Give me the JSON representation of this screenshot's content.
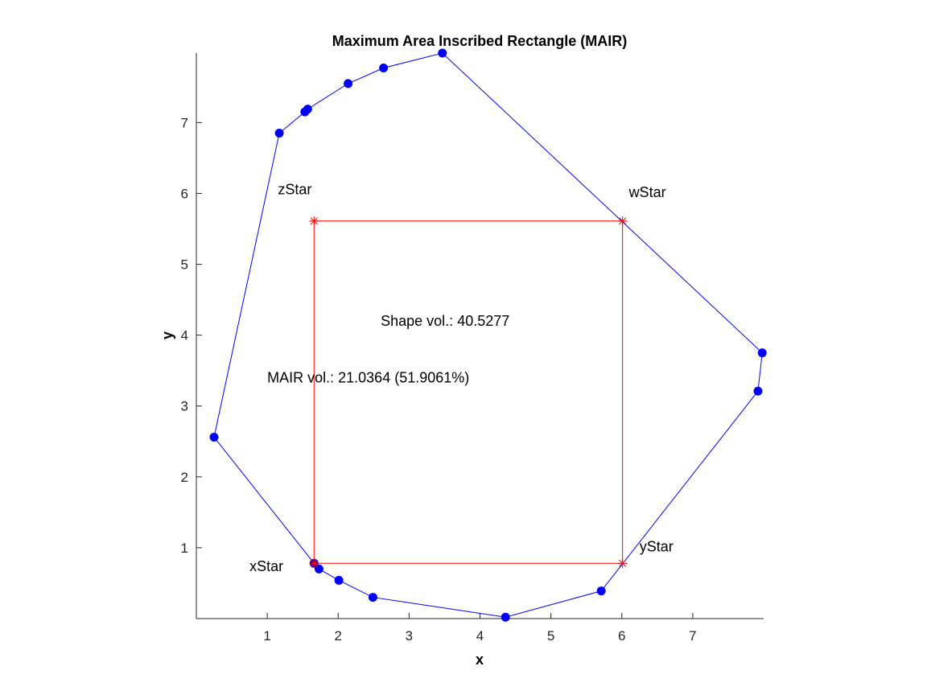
{
  "chart_data": {
    "type": "scatter",
    "title": "Maximum Area Inscribed Rectangle (MAIR)",
    "xlabel": "x",
    "ylabel": "y",
    "xlim": [
      0.0,
      8.0
    ],
    "ylim": [
      0.0,
      7.98
    ],
    "xticks": [
      1,
      2,
      3,
      4,
      5,
      6,
      7
    ],
    "yticks": [
      1,
      2,
      3,
      4,
      5,
      6,
      7
    ],
    "grid": false,
    "colors": {
      "polygon": "#0000ff",
      "rectangle": "#ff0000",
      "axis": "#262626"
    },
    "series": [
      {
        "name": "",
        "kind": "line-with-markers",
        "color": "#0000ff",
        "points": [
          [
            0.25,
            2.56
          ],
          [
            1.66,
            0.78
          ],
          [
            1.73,
            0.7
          ],
          [
            2.01,
            0.54
          ],
          [
            2.49,
            0.3
          ],
          [
            4.36,
            0.02
          ],
          [
            5.71,
            0.39
          ],
          [
            7.92,
            3.21
          ],
          [
            7.98,
            3.75
          ],
          [
            3.47,
            7.98
          ],
          [
            2.64,
            7.77
          ],
          [
            2.14,
            7.55
          ],
          [
            1.57,
            7.19
          ],
          [
            1.53,
            7.15
          ],
          [
            1.17,
            6.85
          ],
          [
            0.25,
            2.56
          ]
        ]
      },
      {
        "name": "",
        "kind": "rectangle",
        "color": "#ff0000",
        "points": [
          [
            1.66,
            0.78
          ],
          [
            6.01,
            0.78
          ],
          [
            6.01,
            5.61
          ],
          [
            1.66,
            5.61
          ],
          [
            1.66,
            0.78
          ]
        ]
      }
    ],
    "annotations": [
      {
        "id": "xStar",
        "text": "xStar",
        "x": 0.75,
        "y": 0.67
      },
      {
        "id": "yStar",
        "text": "yStar",
        "x": 6.25,
        "y": 0.95
      },
      {
        "id": "zStar",
        "text": "zStar",
        "x": 1.15,
        "y": 5.99
      },
      {
        "id": "wStar",
        "text": "wStar",
        "x": 6.1,
        "y": 5.95
      },
      {
        "id": "shape-vol",
        "text": "Shape vol.: 40.5277",
        "x": 2.6,
        "y": 4.13
      },
      {
        "id": "mair-vol",
        "text": "MAIR vol.: 21.0364 (51.9061%)",
        "x": 1.0,
        "y": 3.33
      }
    ]
  }
}
